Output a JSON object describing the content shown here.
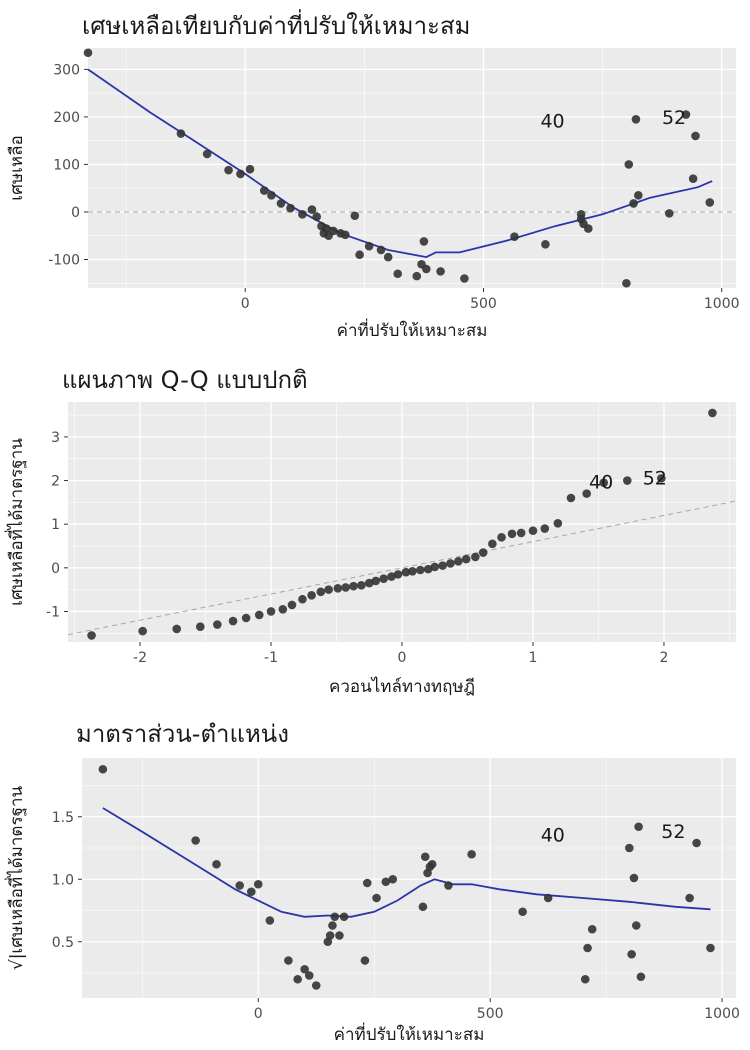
{
  "colors": {
    "panel_bg": "#ebebeb",
    "grid_major": "#ffffff",
    "point": "#333333",
    "smooth": "#2a35a8",
    "reference_line": "#a6a6a6"
  },
  "chart_data": [
    {
      "id": "residuals-vs-fitted",
      "type": "scatter",
      "title": "เศษเหลือเทียบกับค่าที่ปรับให้เหมาะสม",
      "xlabel": "ค่าที่ปรับให้เหมาะสม",
      "ylabel": "เศษเหลือ",
      "xlim": [
        -330,
        1030
      ],
      "ylim": [
        -160,
        345
      ],
      "xticks": [
        0,
        500,
        1000
      ],
      "xtick_labels": [
        "0",
        "500",
        "1000"
      ],
      "yticks": [
        -100,
        0,
        100,
        200,
        300
      ],
      "ytick_labels": [
        "-100",
        "0",
        "100",
        "200",
        "300"
      ],
      "hline": 0,
      "grid": true,
      "points": {
        "x": [
          -330,
          -135,
          -80,
          -35,
          -10,
          10,
          40,
          55,
          75,
          95,
          120,
          140,
          150,
          160,
          165,
          170,
          175,
          185,
          200,
          210,
          230,
          240,
          260,
          285,
          300,
          320,
          360,
          370,
          375,
          380,
          410,
          460,
          565,
          630,
          705,
          705,
          710,
          720,
          800,
          805,
          815,
          820,
          825,
          890,
          925,
          940,
          945,
          975
        ],
        "y": [
          335,
          165,
          122,
          88,
          80,
          90,
          45,
          35,
          18,
          8,
          -5,
          5,
          -10,
          -30,
          -45,
          -35,
          -50,
          -40,
          -45,
          -48,
          -8,
          -90,
          -72,
          -80,
          -95,
          -130,
          -135,
          -110,
          -62,
          -120,
          -125,
          -140,
          -52,
          -68,
          -15,
          -5,
          -25,
          -35,
          -150,
          100,
          18,
          195,
          35,
          -3,
          205,
          70,
          160,
          20
        ]
      },
      "smooth": {
        "x": [
          -330,
          -200,
          -100,
          0,
          100,
          200,
          300,
          380,
          400,
          450,
          550,
          650,
          750,
          850,
          950,
          980
        ],
        "y": [
          300,
          210,
          145,
          80,
          10,
          -45,
          -80,
          -95,
          -85,
          -85,
          -60,
          -30,
          -5,
          30,
          52,
          65
        ]
      },
      "labels": [
        {
          "text": "40",
          "x": 645,
          "y": 190
        },
        {
          "text": "52",
          "x": 900,
          "y": 198
        }
      ]
    },
    {
      "id": "normal-qq",
      "type": "scatter",
      "title": "แผนภาพ Q-Q แบบปกติ",
      "xlabel": "ควอนไทล์ทางทฤษฎี",
      "ylabel": "เศษเหลือที่ได้มาตรฐาน",
      "xlim": [
        -2.55,
        2.55
      ],
      "ylim": [
        -1.7,
        3.8
      ],
      "xticks": [
        -2,
        -1,
        0,
        1,
        2
      ],
      "xtick_labels": [
        "-2",
        "-1",
        "0",
        "1",
        "2"
      ],
      "yticks": [
        -1,
        0,
        1,
        2,
        3
      ],
      "ytick_labels": [
        "-1",
        "0",
        "1",
        "2",
        "3"
      ],
      "grid": true,
      "points": {
        "x": [
          -2.37,
          -1.98,
          -1.72,
          -1.54,
          -1.41,
          -1.29,
          -1.19,
          -1.09,
          -1.0,
          -0.91,
          -0.84,
          -0.76,
          -0.69,
          -0.62,
          -0.56,
          -0.49,
          -0.43,
          -0.37,
          -0.31,
          -0.25,
          -0.2,
          -0.14,
          -0.08,
          -0.03,
          0.03,
          0.08,
          0.14,
          0.2,
          0.25,
          0.31,
          0.37,
          0.43,
          0.49,
          0.56,
          0.62,
          0.69,
          0.76,
          0.84,
          0.91,
          1.0,
          1.09,
          1.19,
          1.29,
          1.41,
          1.54,
          1.72,
          1.98,
          2.37
        ],
        "y": [
          -1.55,
          -1.45,
          -1.4,
          -1.35,
          -1.3,
          -1.22,
          -1.15,
          -1.08,
          -1.0,
          -0.95,
          -0.85,
          -0.72,
          -0.63,
          -0.55,
          -0.5,
          -0.47,
          -0.45,
          -0.42,
          -0.4,
          -0.35,
          -0.3,
          -0.25,
          -0.2,
          -0.15,
          -0.1,
          -0.08,
          -0.05,
          -0.03,
          0.02,
          0.05,
          0.1,
          0.15,
          0.2,
          0.25,
          0.35,
          0.55,
          0.7,
          0.78,
          0.8,
          0.85,
          0.9,
          1.02,
          1.6,
          1.7,
          1.95,
          2.0,
          2.05,
          3.55
        ]
      },
      "reference_line": {
        "slope": 0.6,
        "intercept": 0
      },
      "labels": [
        {
          "text": "40",
          "x": 1.52,
          "y": 1.95
        },
        {
          "text": "52",
          "x": 1.93,
          "y": 2.05
        }
      ]
    },
    {
      "id": "scale-location",
      "type": "scatter",
      "title": "มาตราส่วน-ตำแหน่ง",
      "xlabel": "ค่าที่ปรับให้เหมาะสม",
      "ylabel": "√|เศษเหลือที่ได้มาตรฐาน",
      "xlim": [
        -380,
        1030
      ],
      "ylim": [
        0.05,
        1.97
      ],
      "xticks": [
        0,
        500,
        1000
      ],
      "xtick_labels": [
        "0",
        "500",
        "1000"
      ],
      "yticks": [
        0.5,
        1.0,
        1.5
      ],
      "ytick_labels": [
        "0.5",
        "1.0",
        "1.5"
      ],
      "grid": true,
      "points": {
        "x": [
          -335,
          -135,
          -90,
          -40,
          -15,
          0,
          25,
          65,
          85,
          100,
          110,
          125,
          150,
          155,
          160,
          165,
          175,
          185,
          230,
          235,
          255,
          275,
          290,
          355,
          360,
          365,
          370,
          375,
          410,
          460,
          570,
          625,
          705,
          710,
          720,
          800,
          805,
          810,
          815,
          820,
          825,
          930,
          945,
          975
        ],
        "y": [
          1.88,
          1.31,
          1.12,
          0.95,
          0.9,
          0.96,
          0.67,
          0.35,
          0.2,
          0.28,
          0.23,
          0.15,
          0.5,
          0.55,
          0.63,
          0.7,
          0.55,
          0.7,
          0.35,
          0.97,
          0.85,
          0.98,
          1.0,
          0.78,
          1.18,
          1.05,
          1.1,
          1.12,
          0.95,
          1.2,
          0.74,
          0.85,
          0.2,
          0.45,
          0.6,
          1.25,
          0.4,
          1.01,
          0.63,
          1.42,
          0.22,
          0.85,
          1.29,
          0.45
        ]
      },
      "smooth": {
        "x": [
          -335,
          -250,
          -150,
          -50,
          50,
          100,
          150,
          200,
          250,
          300,
          350,
          380,
          420,
          460,
          520,
          600,
          700,
          800,
          900,
          975
        ],
        "y": [
          1.57,
          1.38,
          1.15,
          0.92,
          0.74,
          0.7,
          0.71,
          0.7,
          0.74,
          0.83,
          0.95,
          1.0,
          0.96,
          0.96,
          0.92,
          0.88,
          0.85,
          0.82,
          0.78,
          0.76
        ]
      },
      "labels": [
        {
          "text": "40",
          "x": 635,
          "y": 1.35
        },
        {
          "text": "52",
          "x": 895,
          "y": 1.38
        }
      ]
    }
  ]
}
